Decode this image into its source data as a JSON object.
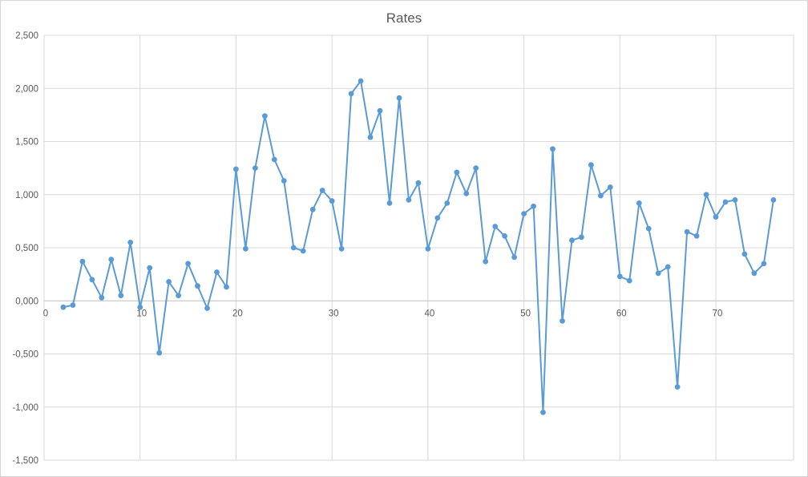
{
  "chart_data": {
    "type": "line",
    "title": "Rates",
    "xlabel": "",
    "ylabel": "",
    "x": [
      2,
      3,
      4,
      5,
      6,
      7,
      8,
      9,
      10,
      11,
      12,
      13,
      14,
      15,
      16,
      17,
      18,
      19,
      20,
      21,
      22,
      23,
      24,
      25,
      26,
      27,
      28,
      29,
      30,
      31,
      32,
      33,
      34,
      35,
      36,
      37,
      38,
      39,
      40,
      41,
      42,
      43,
      44,
      45,
      46,
      47,
      48,
      49,
      50,
      51,
      52,
      53,
      54,
      55,
      56,
      57,
      58,
      59,
      60,
      61,
      62,
      63,
      64,
      65,
      66,
      67,
      68,
      69,
      70,
      71,
      72,
      73,
      74,
      75,
      76
    ],
    "values": [
      -60,
      -40,
      370,
      200,
      30,
      390,
      50,
      550,
      -60,
      310,
      -490,
      180,
      50,
      350,
      140,
      -70,
      270,
      130,
      1240,
      490,
      1250,
      1740,
      1330,
      1130,
      500,
      470,
      860,
      1040,
      940,
      490,
      1950,
      2070,
      1540,
      1790,
      920,
      1910,
      950,
      1110,
      490,
      780,
      920,
      1210,
      1010,
      1250,
      370,
      700,
      610,
      410,
      820,
      890,
      -1050,
      1430,
      -190,
      570,
      600,
      1280,
      990,
      1070,
      230,
      190,
      920,
      680,
      260,
      320,
      -810,
      650,
      610,
      1000,
      790,
      930,
      950,
      440,
      260,
      350,
      950
    ],
    "xlim": [
      0,
      78.1
    ],
    "ylim": [
      -1500,
      2500
    ],
    "x_ticks": [
      0,
      10,
      20,
      30,
      40,
      50,
      60,
      70
    ],
    "x_tick_labels": [
      "0",
      "10",
      "20",
      "30",
      "40",
      "50",
      "60",
      "70"
    ],
    "y_ticks": [
      2500,
      2000,
      1500,
      1000,
      500,
      0,
      -500,
      -1000,
      -1500
    ],
    "y_tick_labels": [
      "2,500",
      "2,000",
      "1,500",
      "1,000",
      "0,500",
      "0,000",
      "-0,500",
      "-1,000",
      "-1,500"
    ],
    "grid": true,
    "legend": "none",
    "marker": "circle",
    "colors": {
      "series_line": "#5B9BD5",
      "marker_fill": "#5B9BD5",
      "gridline": "#D9D9D9",
      "axis_line": "#C6C6C6",
      "text": "#595959",
      "background": "#FFFFFF",
      "border": "#D7D7D7"
    }
  }
}
